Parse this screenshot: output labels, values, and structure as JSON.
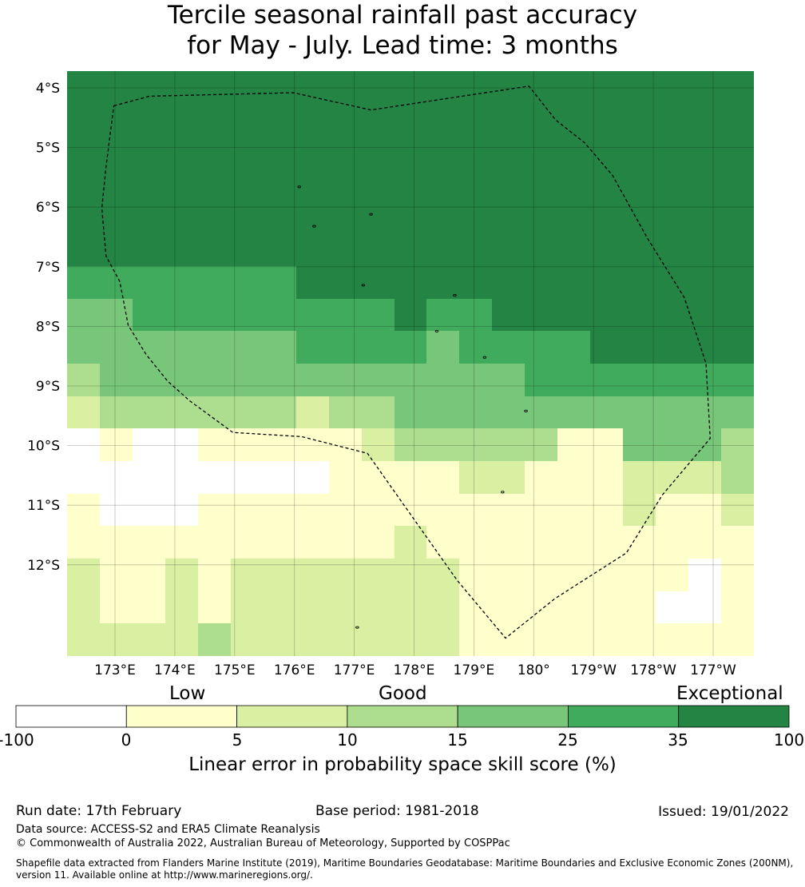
{
  "title": {
    "line1": "Tercile seasonal rainfall past accuracy",
    "line2": "for May - July. Lead time: 3 months"
  },
  "map": {
    "lat_labels": [
      "4°S",
      "5°S",
      "6°S",
      "7°S",
      "8°S",
      "9°S",
      "10°S",
      "11°S",
      "12°S"
    ],
    "lon_labels": [
      "173°E",
      "174°E",
      "175°E",
      "176°E",
      "177°E",
      "178°E",
      "179°E",
      "180°",
      "179°W",
      "178°W",
      "177°W"
    ],
    "skill_grid": [
      [
        6,
        6,
        6,
        6,
        6,
        6,
        6,
        6,
        6,
        6,
        6,
        6,
        6,
        6,
        6,
        6,
        6,
        6,
        6,
        6,
        6
      ],
      [
        6,
        6,
        6,
        6,
        6,
        6,
        6,
        6,
        6,
        6,
        6,
        6,
        6,
        6,
        6,
        6,
        6,
        6,
        6,
        6,
        6
      ],
      [
        6,
        6,
        6,
        6,
        6,
        6,
        6,
        6,
        6,
        6,
        6,
        6,
        6,
        6,
        6,
        6,
        6,
        6,
        6,
        6,
        6
      ],
      [
        6,
        6,
        6,
        6,
        6,
        6,
        6,
        6,
        6,
        6,
        6,
        6,
        6,
        6,
        6,
        6,
        6,
        6,
        6,
        6,
        6
      ],
      [
        6,
        6,
        6,
        6,
        6,
        6,
        6,
        6,
        6,
        6,
        6,
        6,
        6,
        6,
        6,
        6,
        6,
        6,
        6,
        6,
        6
      ],
      [
        6,
        6,
        6,
        6,
        6,
        6,
        6,
        6,
        6,
        6,
        6,
        6,
        6,
        6,
        6,
        6,
        6,
        6,
        6,
        6,
        6
      ],
      [
        5,
        5,
        5,
        5,
        5,
        5,
        5,
        6,
        6,
        6,
        6,
        6,
        6,
        6,
        6,
        6,
        6,
        6,
        6,
        6,
        6
      ],
      [
        4,
        4,
        5,
        5,
        5,
        5,
        5,
        5,
        5,
        5,
        6,
        5,
        5,
        6,
        6,
        6,
        6,
        6,
        6,
        6,
        6
      ],
      [
        4,
        4,
        4,
        4,
        4,
        4,
        4,
        5,
        5,
        5,
        5,
        4,
        5,
        5,
        5,
        5,
        6,
        6,
        6,
        6,
        6
      ],
      [
        3,
        4,
        4,
        4,
        4,
        4,
        4,
        4,
        4,
        4,
        4,
        4,
        4,
        4,
        5,
        5,
        5,
        5,
        5,
        5,
        5
      ],
      [
        2,
        3,
        3,
        3,
        3,
        3,
        3,
        2,
        3,
        3,
        4,
        4,
        4,
        4,
        4,
        4,
        4,
        4,
        4,
        4,
        4
      ],
      [
        0,
        1,
        0,
        0,
        1,
        1,
        1,
        1,
        1,
        2,
        3,
        3,
        3,
        3,
        3,
        1,
        1,
        4,
        4,
        4,
        3
      ],
      [
        0,
        0,
        0,
        0,
        0,
        0,
        0,
        0,
        1,
        1,
        1,
        1,
        2,
        2,
        1,
        1,
        1,
        2,
        2,
        2,
        3
      ],
      [
        1,
        0,
        0,
        0,
        1,
        1,
        1,
        1,
        1,
        1,
        1,
        1,
        1,
        1,
        1,
        1,
        1,
        2,
        1,
        1,
        2
      ],
      [
        1,
        1,
        1,
        1,
        1,
        1,
        1,
        1,
        1,
        1,
        2,
        1,
        1,
        1,
        1,
        1,
        1,
        1,
        1,
        1,
        1
      ],
      [
        2,
        1,
        1,
        2,
        1,
        2,
        2,
        2,
        2,
        2,
        2,
        2,
        1,
        1,
        1,
        1,
        1,
        1,
        1,
        0,
        1
      ],
      [
        2,
        1,
        1,
        2,
        1,
        2,
        2,
        2,
        2,
        2,
        2,
        2,
        1,
        1,
        1,
        1,
        1,
        1,
        0,
        0,
        1
      ],
      [
        2,
        2,
        2,
        2,
        3,
        2,
        2,
        2,
        2,
        2,
        2,
        2,
        1,
        1,
        1,
        1,
        1,
        1,
        1,
        1,
        1
      ]
    ],
    "eez_boundary": [
      [
        172.98,
        -4.3
      ],
      [
        173.58,
        -4.14
      ],
      [
        175.98,
        -4.08
      ],
      [
        177.28,
        -4.37
      ],
      [
        179.92,
        -3.97
      ],
      [
        -179.63,
        -4.54
      ],
      [
        -179.15,
        -4.92
      ],
      [
        -178.68,
        -5.47
      ],
      [
        -178.1,
        -6.52
      ],
      [
        -177.48,
        -7.52
      ],
      [
        -177.12,
        -8.62
      ],
      [
        -177.05,
        -9.88
      ],
      [
        -177.85,
        -10.83
      ],
      [
        -178.45,
        -11.8
      ],
      [
        -179.65,
        -12.57
      ],
      [
        179.53,
        -13.23
      ],
      [
        178.72,
        -12.26
      ],
      [
        177.22,
        -10.13
      ],
      [
        176.12,
        -9.85
      ],
      [
        174.97,
        -9.78
      ],
      [
        174.25,
        -9.25
      ],
      [
        173.88,
        -8.92
      ],
      [
        173.52,
        -8.47
      ],
      [
        173.22,
        -7.98
      ],
      [
        173.08,
        -7.25
      ],
      [
        172.85,
        -6.82
      ],
      [
        172.78,
        -6.02
      ],
      [
        172.85,
        -5.32
      ],
      [
        172.98,
        -4.3
      ]
    ],
    "islands": [
      [
        176.08,
        -5.66
      ],
      [
        177.28,
        -6.12
      ],
      [
        176.33,
        -6.32
      ],
      [
        177.15,
        -7.31
      ],
      [
        178.68,
        -7.48
      ],
      [
        178.38,
        -8.08
      ],
      [
        179.18,
        -8.52
      ],
      [
        179.87,
        -9.42
      ],
      [
        179.48,
        -10.78
      ],
      [
        177.05,
        -13.05
      ]
    ]
  },
  "colorbar": {
    "categories": [
      "Low",
      "Good",
      "Exceptional"
    ],
    "ticks": [
      "-100",
      "0",
      "5",
      "10",
      "15",
      "25",
      "35",
      "100"
    ],
    "colors": [
      "#ffffff",
      "#ffffcc",
      "#d9f0a3",
      "#addd8e",
      "#78c679",
      "#41ab5d",
      "#238443"
    ],
    "label": "Linear error in probability space skill score (%)"
  },
  "footer": {
    "run_date": "Run date: 17th February",
    "base_period": "Base period: 1981-2018",
    "issued": "Issued: 19/01/2022",
    "data_source": "Data source: ACCESS-S2 and ERA5 Climate Reanalysis",
    "copyright": "© Commonwealth of Australia 2022, Australian Bureau of Meteorology, Supported by COSPPac",
    "shapefile_line1": "Shapefile data extracted from Flanders Marine Institute (2019), Maritime Boundaries Geodatabase: Maritime Boundaries and Exclusive Economic Zones (200NM),",
    "shapefile_line2": "version 11. Available online at http://www.marineregions.org/."
  }
}
